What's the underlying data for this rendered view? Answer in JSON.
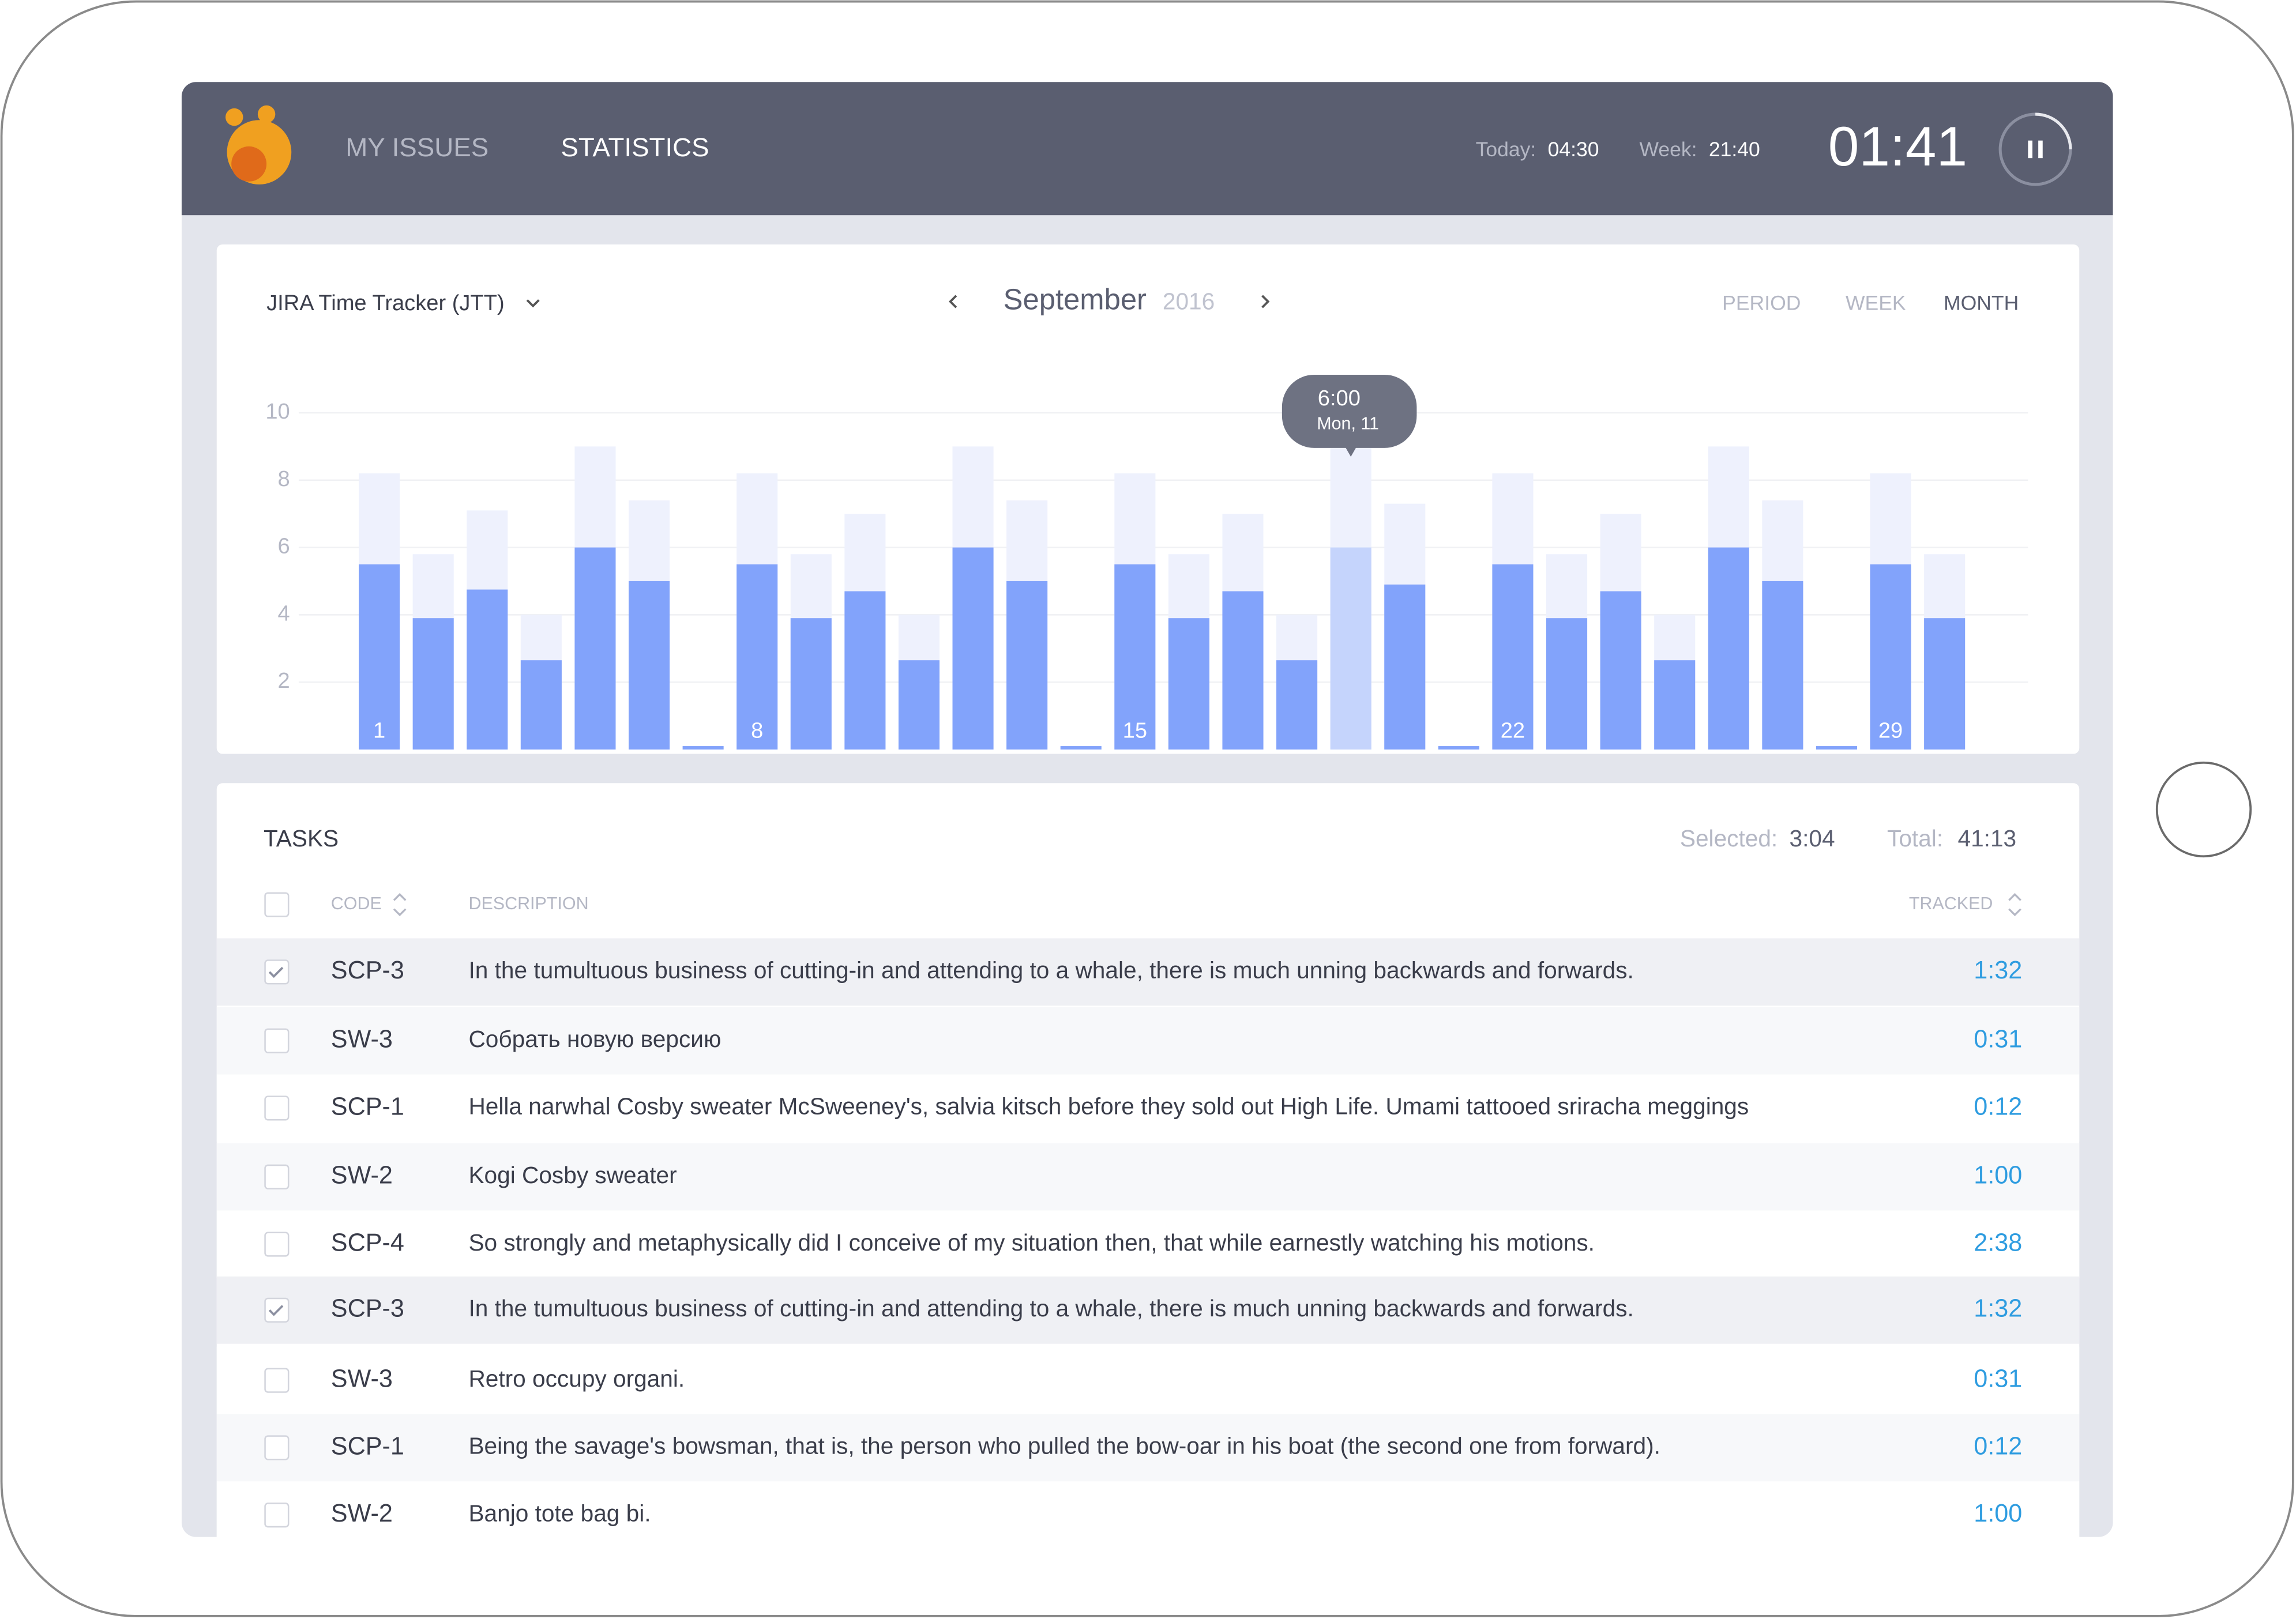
{
  "header": {
    "nav": [
      "MY ISSUES",
      "STATISTICS"
    ],
    "today_label": "Today:",
    "today": "04:30",
    "week_label": "Week:",
    "week": "21:40",
    "timer": "01:41"
  },
  "toolbar": {
    "project": "JIRA Time Tracker (JTT)",
    "month": "September",
    "year": "2016",
    "periods": [
      "PERIOD",
      "WEEK",
      "MONTH"
    ]
  },
  "chart_data": {
    "type": "bar",
    "categories": [
      "1",
      null,
      null,
      null,
      null,
      null,
      null,
      "8",
      null,
      null,
      null,
      null,
      null,
      null,
      "15",
      null,
      null,
      null,
      null,
      null,
      null,
      "22",
      null,
      null,
      null,
      null,
      null,
      null,
      "29",
      null
    ],
    "series": [
      {
        "color": "#eef1fd",
        "values": [
          8.2,
          5.8,
          7.1,
          4.0,
          9.0,
          7.4,
          null,
          8.2,
          5.8,
          7.0,
          4.0,
          9.0,
          7.4,
          null,
          8.2,
          5.8,
          7.0,
          4.0,
          9.0,
          7.3,
          null,
          8.2,
          5.8,
          7.0,
          4.0,
          9.0,
          7.4,
          null,
          8.2,
          5.8
        ]
      },
      {
        "color": "#82a3fb",
        "values": [
          5.5,
          3.9,
          4.75,
          2.65,
          6.0,
          5.0,
          0.1,
          5.5,
          3.9,
          4.7,
          2.65,
          6.0,
          5.0,
          0.1,
          5.5,
          3.9,
          4.7,
          2.65,
          6.0,
          4.9,
          0.1,
          5.5,
          3.9,
          4.7,
          2.65,
          6.0,
          5.0,
          0.1,
          5.5,
          3.9
        ]
      }
    ],
    "ylim": [
      0,
      10
    ],
    "yticks": [
      2,
      4,
      6,
      8,
      10
    ],
    "grid": true,
    "tooltip": {
      "value": "6:00",
      "date": "Mon, 11",
      "index": 18,
      "color": "#c5d4fc"
    }
  },
  "tasks": {
    "title": "TASKS",
    "selected_label": "Selected:",
    "selected": "3:04",
    "total_label": "Total:",
    "total": "41:13",
    "columns": [
      "CODE",
      "DESCRIPTION",
      "TRACKED"
    ],
    "rows": [
      {
        "checked": true,
        "code": "SCP-3",
        "description": "In the tumultuous business of cutting-in and attending to a whale, there is much unning backwards and forwards.",
        "tracked": "1:32"
      },
      {
        "checked": false,
        "code": "SW-3",
        "description": "Собрать новую версию",
        "tracked": "0:31"
      },
      {
        "checked": false,
        "code": "SCP-1",
        "description": "Hella narwhal Cosby sweater McSweeney's, salvia kitsch before they sold out High Life. Umami tattooed sriracha meggings",
        "tracked": "0:12"
      },
      {
        "checked": false,
        "code": "SW-2",
        "description": "Kogi Cosby sweater",
        "tracked": "1:00"
      },
      {
        "checked": false,
        "code": "SCP-4",
        "description": "So strongly and metaphysically did I conceive of my situation then, that while earnestly watching his motions.",
        "tracked": "2:38"
      },
      {
        "checked": true,
        "code": "SCP-3",
        "description": "In the tumultuous business of cutting-in and attending to a whale, there is much unning backwards and forwards.",
        "tracked": "1:32"
      },
      {
        "checked": false,
        "code": "SW-3",
        "description": "Retro occupy organi.",
        "tracked": "0:31"
      },
      {
        "checked": false,
        "code": "SCP-1",
        "description": "Being the savage's bowsman, that is, the person who pulled the bow-oar in his boat (the second one from forward).",
        "tracked": "0:12"
      },
      {
        "checked": false,
        "code": "SW-2",
        "description": "Banjo tote bag bi.",
        "tracked": "1:00"
      }
    ]
  }
}
